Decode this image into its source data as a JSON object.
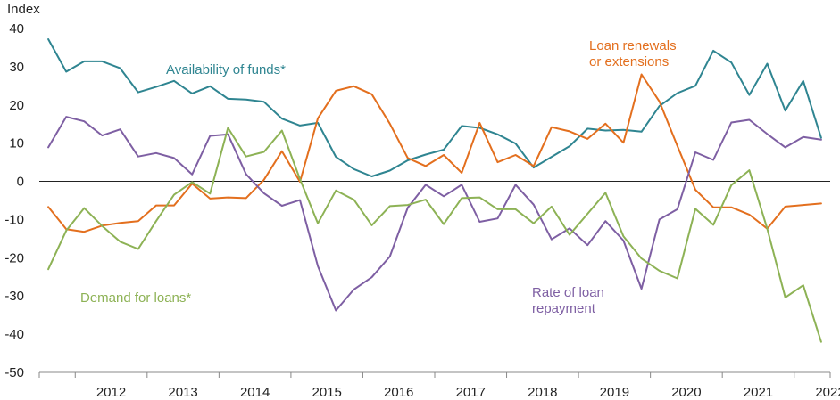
{
  "chart_data": {
    "type": "line",
    "ylabel": "Index",
    "ylim": [
      -50,
      40
    ],
    "yticks": [
      40,
      30,
      20,
      10,
      0,
      -10,
      -20,
      -30,
      -40,
      -50
    ],
    "x_start": 2011.5,
    "x_end": 2022.5,
    "step": 0.25,
    "x_tick_labels": [
      "2012",
      "2013",
      "2014",
      "2015",
      "2016",
      "2017",
      "2018",
      "2019",
      "2020",
      "2021",
      "2022"
    ],
    "grid": false,
    "series": [
      {
        "name": "Availability of funds*",
        "color": "#2f8591",
        "label_lines": [
          "Availability of funds*"
        ],
        "values": [
          37.2,
          28.7,
          31.4,
          31.4,
          29.6,
          23.3,
          24.7,
          26.3,
          23.0,
          24.9,
          21.6,
          21.4,
          20.8,
          16.4,
          14.6,
          15.3,
          6.4,
          3.2,
          1.3,
          2.8,
          5.5,
          7.0,
          8.3,
          14.5,
          14.0,
          12.3,
          9.9,
          3.6,
          6.4,
          9.2,
          13.8,
          13.3,
          13.5,
          13.0,
          19.7,
          23.1,
          25.0,
          34.2,
          31.1,
          22.6,
          30.8,
          18.5,
          26.3,
          11.4
        ]
      },
      {
        "name": "Loan renewals or extensions",
        "color": "#e36f1e",
        "label_lines": [
          "Loan renewals",
          "or extensions"
        ],
        "values": [
          -6.7,
          -12.5,
          -13.2,
          -11.6,
          -10.9,
          -10.4,
          -6.3,
          -6.3,
          -0.6,
          -4.5,
          -4.2,
          -4.4,
          0.4,
          7.9,
          -0.1,
          16.5,
          23.7,
          24.9,
          22.8,
          15.1,
          6.1,
          4.0,
          6.9,
          2.2,
          15.3,
          5.0,
          6.9,
          4.0,
          14.2,
          13.1,
          11.1,
          15.1,
          10.1,
          28.0,
          20.9,
          9.3,
          -2.2,
          -6.8,
          -6.8,
          -8.7,
          -12.4,
          -6.6,
          -6.2,
          -5.8
        ]
      },
      {
        "name": "Rate of loan repayment",
        "color": "#7e5fa3",
        "label_lines": [
          "Rate of loan",
          "repayment"
        ],
        "values": [
          8.9,
          16.9,
          15.7,
          12.0,
          13.6,
          6.5,
          7.4,
          6.1,
          1.8,
          11.9,
          12.3,
          1.9,
          -3.1,
          -6.4,
          -4.9,
          -22.2,
          -33.8,
          -28.3,
          -25.1,
          -19.7,
          -6.9,
          -0.9,
          -3.9,
          -0.9,
          -10.6,
          -9.7,
          -0.9,
          -6.1,
          -15.2,
          -12.3,
          -16.7,
          -10.4,
          -15.5,
          -28.1,
          -10.0,
          -7.3,
          7.6,
          5.6,
          15.4,
          16.1,
          12.4,
          8.9,
          11.6,
          10.9
        ]
      },
      {
        "name": "Demand for loans*",
        "color": "#8db255",
        "label_lines": [
          "Demand for loans*"
        ],
        "values": [
          -23.0,
          -12.9,
          -7.0,
          -11.7,
          -15.8,
          -17.7,
          -10.4,
          -3.5,
          -0.2,
          -3.2,
          14.0,
          6.5,
          7.7,
          13.3,
          0.6,
          -11.0,
          -2.4,
          -4.8,
          -11.5,
          -6.5,
          -6.2,
          -4.8,
          -11.2,
          -4.4,
          -4.2,
          -7.3,
          -7.3,
          -11.0,
          -6.6,
          -14.0,
          -8.5,
          -3.0,
          -14.4,
          -20.2,
          -23.4,
          -25.4,
          -7.2,
          -11.4,
          -1.0,
          2.9,
          -12.4,
          -30.4,
          -27.2,
          -42.0
        ]
      }
    ]
  }
}
